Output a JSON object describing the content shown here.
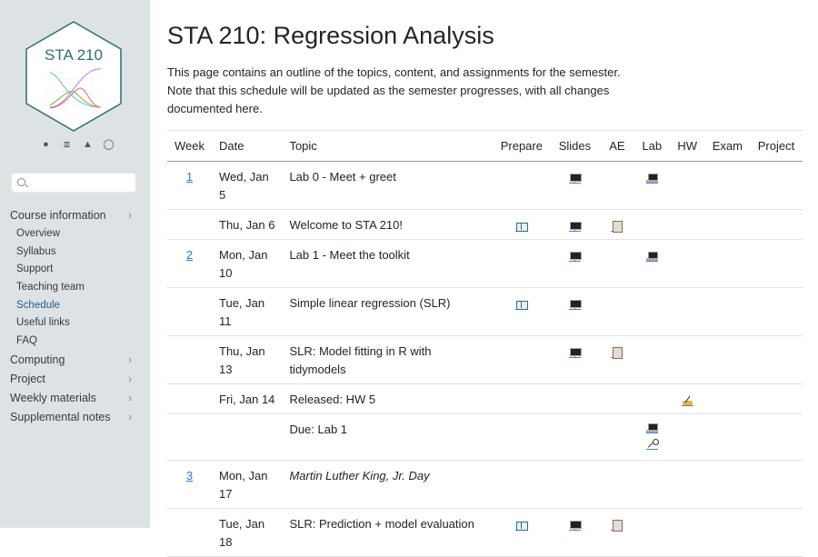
{
  "sidebar": {
    "logo_text": "STA 210",
    "tools": [
      "github-icon",
      "code-icon",
      "person-icon",
      "toggle-icon"
    ],
    "search_placeholder": "",
    "sections": [
      {
        "label": "Course information",
        "items": [
          "Overview",
          "Syllabus",
          "Support",
          "Teaching team",
          "Schedule",
          "Useful links",
          "FAQ"
        ],
        "active": "Schedule"
      },
      {
        "label": "Computing"
      },
      {
        "label": "Project"
      },
      {
        "label": "Weekly materials"
      },
      {
        "label": "Supplemental notes"
      }
    ]
  },
  "main": {
    "title": "STA 210: Regression Analysis",
    "description": "This page contains an outline of the topics, content, and assignments for the semester. Note that this schedule will be updated as the semester progresses, with all changes documented here.",
    "columns": [
      "Week",
      "Date",
      "Topic",
      "Prepare",
      "Slides",
      "AE",
      "Lab",
      "HW",
      "Exam",
      "Project"
    ],
    "rows": [
      {
        "week": "1",
        "date": "Wed, Jan 5",
        "topic": "Lab 0 - Meet + greet",
        "slides": [
          "desktop"
        ],
        "lab": [
          "laptop"
        ]
      },
      {
        "week": "",
        "date": "Thu, Jan 6",
        "topic": "Welcome to STA 210!",
        "prepare": [
          "book"
        ],
        "slides": [
          "desktop"
        ],
        "ae": [
          "clipboard"
        ]
      },
      {
        "week": "2",
        "date": "Mon, Jan 10",
        "topic": "Lab 1 - Meet the toolkit",
        "slides": [
          "desktop"
        ],
        "lab": [
          "laptop"
        ]
      },
      {
        "week": "",
        "date": "Tue, Jan 11",
        "topic": "Simple linear regression (SLR)",
        "prepare": [
          "book"
        ],
        "slides": [
          "desktop"
        ]
      },
      {
        "week": "",
        "date": "Thu, Jan 13",
        "topic": "SLR: Model fitting in R with tidymodels",
        "slides": [
          "desktop"
        ],
        "ae": [
          "clipboard"
        ]
      },
      {
        "week": "",
        "date": "Fri, Jan 14",
        "topic": "Released: HW 5",
        "hw": [
          "writing"
        ]
      },
      {
        "week": "",
        "date": "",
        "topic": "Due: Lab 1",
        "lab": [
          "laptop",
          "key"
        ]
      },
      {
        "week": "3",
        "date": "Mon, Jan 17",
        "topic": "Martin Luther King, Jr. Day",
        "italic": true
      },
      {
        "week": "",
        "date": "Tue, Jan 18",
        "topic": "SLR: Prediction + model evaluation",
        "prepare": [
          "book"
        ],
        "slides": [
          "desktop"
        ],
        "ae": [
          "clipboard"
        ]
      }
    ]
  }
}
